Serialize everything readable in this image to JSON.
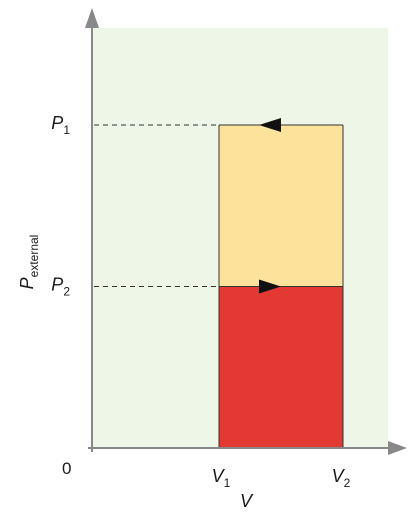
{
  "chart_data": {
    "type": "area",
    "title": "",
    "xlabel": "V",
    "ylabel": {
      "base": "P",
      "subscript": "external"
    },
    "origin_label": "0",
    "x_ticks": [
      {
        "base": "V",
        "sub": "1"
      },
      {
        "base": "V",
        "sub": "2"
      }
    ],
    "y_ticks": [
      {
        "base": "P",
        "sub": "1"
      },
      {
        "base": "P",
        "sub": "2"
      }
    ],
    "x": {
      "V1": 1,
      "V2": 2
    },
    "y": {
      "P1": 2,
      "P2": 1
    },
    "xlim": [
      0,
      2.1
    ],
    "ylim": [
      0,
      2.3
    ],
    "regions": [
      {
        "id": "upper",
        "y_from": "P2",
        "y_to": "P1",
        "color": "#fde29b"
      },
      {
        "id": "lower",
        "y_from": 0,
        "y_to": "P2",
        "color": "#e23a33"
      }
    ],
    "path_arrows": [
      {
        "at": "P1",
        "direction": "left"
      },
      {
        "at": "P2",
        "direction": "right"
      }
    ],
    "background_color": "#eef6e8",
    "grid": false,
    "legend": "none"
  }
}
